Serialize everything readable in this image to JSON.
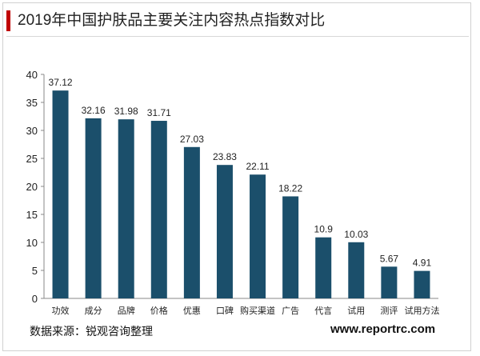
{
  "header": {
    "title": "2019年中国护肤品主要关注内容热点指数对比"
  },
  "footer": {
    "source": "数据来源：锐观咨询整理",
    "site": "www.reportrc.com"
  },
  "colors": {
    "bar": "#1b4f6b",
    "accent": "#c00000"
  },
  "chart_data": {
    "type": "bar",
    "categories": [
      "功效",
      "成分",
      "品牌",
      "价格",
      "优惠",
      "口碑",
      "购买渠道",
      "广告",
      "代言",
      "试用",
      "测评",
      "试用方法"
    ],
    "values": [
      37.12,
      32.16,
      31.98,
      31.71,
      27.03,
      23.83,
      22.11,
      18.22,
      10.9,
      10.03,
      5.67,
      4.91
    ],
    "value_labels": [
      "37.12",
      "32.16",
      "31.98",
      "31.71",
      "27.03",
      "23.83",
      "22.11",
      "18.22",
      "10.9",
      "10.03",
      "5.67",
      "4.91"
    ],
    "yticks": [
      "0",
      "5",
      "10",
      "15",
      "20",
      "25",
      "30",
      "35",
      "40"
    ],
    "ylim": [
      0,
      40
    ],
    "grid": false,
    "legend": "none"
  }
}
